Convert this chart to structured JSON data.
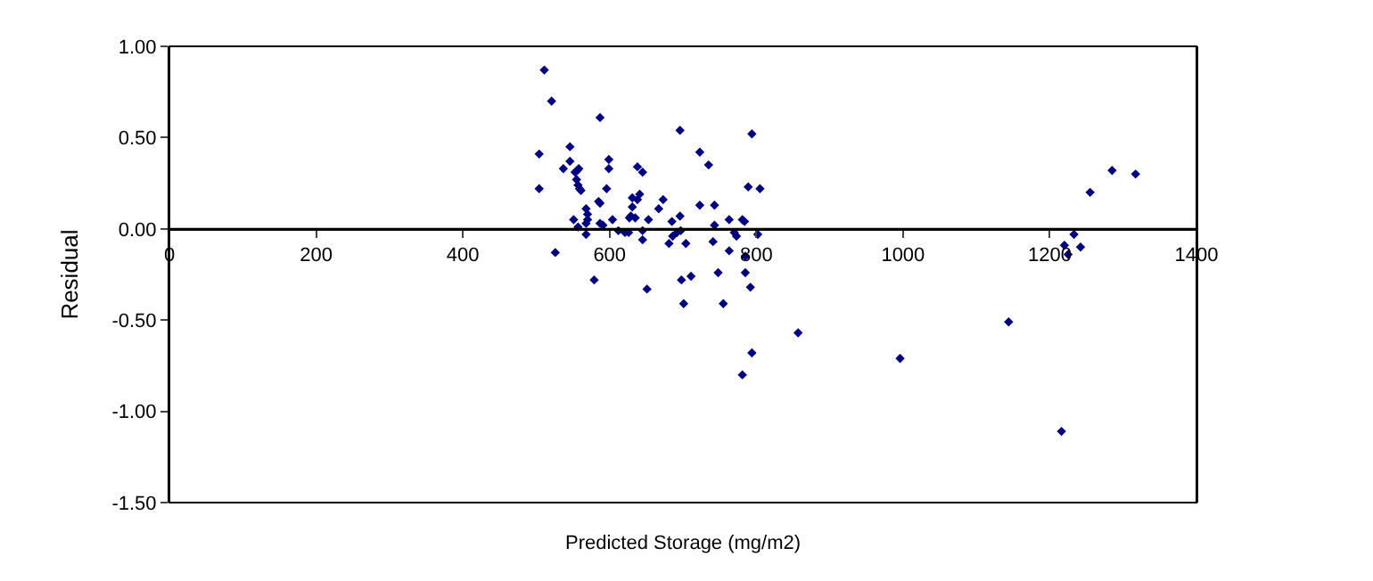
{
  "chart_data": {
    "type": "scatter",
    "xlabel": "Predicted Storage (mg/m2)",
    "ylabel": "Residual",
    "x": [
      511,
      521,
      504,
      504,
      587,
      696,
      546,
      546,
      537,
      553,
      556,
      558,
      555,
      557,
      559,
      561,
      596,
      585,
      587,
      568,
      570,
      570,
      599,
      599,
      631,
      638,
      631,
      629,
      638,
      673,
      667,
      723,
      743,
      551,
      604,
      627,
      635,
      653,
      685,
      696,
      763,
      781,
      784,
      557,
      568,
      587,
      591,
      526,
      568,
      612,
      621,
      626,
      645,
      645,
      686,
      692,
      697,
      681,
      704,
      741,
      743,
      763,
      770,
      802,
      579,
      651,
      698,
      711,
      701,
      748,
      755,
      785,
      792,
      794,
      785,
      773,
      781,
      857,
      996,
      1144,
      1216,
      1255,
      1285,
      1317,
      1233,
      1220,
      1242,
      1225,
      723,
      735,
      794,
      789,
      805,
      645,
      641
    ],
    "values": [
      0.87,
      0.7,
      0.41,
      0.22,
      0.61,
      0.54,
      0.45,
      0.37,
      0.33,
      0.31,
      0.32,
      0.33,
      0.27,
      0.24,
      0.22,
      0.21,
      0.22,
      0.15,
      0.14,
      0.11,
      0.08,
      0.05,
      0.38,
      0.33,
      0.17,
      0.16,
      0.12,
      0.07,
      0.34,
      0.16,
      0.11,
      0.13,
      0.13,
      0.05,
      0.05,
      0.06,
      0.06,
      0.05,
      0.04,
      0.07,
      0.05,
      0.05,
      0.04,
      0.01,
      0.03,
      0.03,
      0.02,
      -0.13,
      -0.03,
      -0.01,
      -0.02,
      -0.02,
      -0.01,
      -0.06,
      -0.04,
      -0.02,
      -0.01,
      -0.08,
      -0.08,
      -0.07,
      0.02,
      -0.12,
      -0.02,
      -0.03,
      -0.28,
      -0.33,
      -0.28,
      -0.26,
      -0.41,
      -0.24,
      -0.41,
      -0.24,
      -0.32,
      -0.68,
      -0.15,
      -0.04,
      -0.8,
      -0.57,
      -0.71,
      -0.51,
      -1.11,
      0.2,
      0.32,
      0.3,
      -0.03,
      -0.09,
      -0.1,
      -0.14,
      0.42,
      0.35,
      0.52,
      0.23,
      0.22,
      0.31,
      0.19
    ],
    "color": "#000080",
    "marker": "diamond",
    "xlim": [
      0,
      1400
    ],
    "xticks": [
      0,
      200,
      400,
      600,
      800,
      1000,
      1200,
      1400
    ],
    "ylim": [
      -1.5,
      1.0
    ],
    "yticks": [
      {
        "value": -1.5,
        "label": "-1.50"
      },
      {
        "value": -1.0,
        "label": "-1.00"
      },
      {
        "value": -0.5,
        "label": "-0.50"
      },
      {
        "value": 0,
        "label": "0.00"
      },
      {
        "value": 0.5,
        "label": "0.50"
      },
      {
        "value": 1.0,
        "label": "1.00"
      }
    ],
    "tick_labels": "xy"
  }
}
